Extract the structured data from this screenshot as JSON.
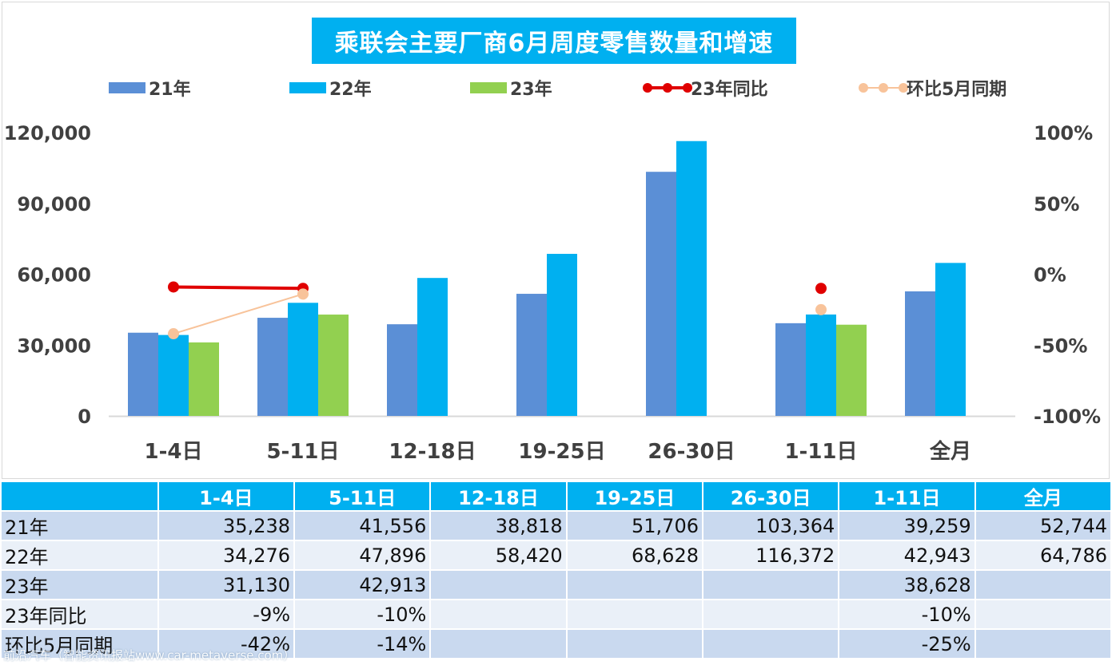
{
  "chart_data": {
    "type": "bar",
    "title": "乘联会主要厂商6月周度零售数量和增速",
    "categories": [
      "1-4日",
      "5-11日",
      "12-18日",
      "19-25日",
      "26-30日",
      "1-11日",
      "全月"
    ],
    "series": [
      {
        "name": "21年",
        "kind": "bar",
        "color": "#5b8fd6",
        "values": [
          35238,
          41556,
          38818,
          51706,
          103364,
          39259,
          52744
        ]
      },
      {
        "name": "22年",
        "kind": "bar",
        "color": "#00b0f0",
        "values": [
          34276,
          47896,
          58420,
          68628,
          116372,
          42943,
          64786
        ]
      },
      {
        "name": "23年",
        "kind": "bar",
        "color": "#92d050",
        "values": [
          31130,
          42913,
          null,
          null,
          null,
          38628,
          null
        ]
      },
      {
        "name": "23年同比",
        "kind": "line",
        "axis": "right",
        "color": "#e00000",
        "values": [
          -0.09,
          -0.1,
          null,
          null,
          null,
          -0.1,
          null
        ]
      },
      {
        "name": "环比5月同期",
        "kind": "line",
        "axis": "right",
        "color": "#f8c39a",
        "values": [
          -0.42,
          -0.14,
          null,
          null,
          null,
          -0.25,
          null
        ]
      }
    ],
    "ylim": [
      0,
      120000
    ],
    "yticks": [
      "0",
      "30,000",
      "60,000",
      "90,000",
      "120,000"
    ],
    "y2lim": [
      -1,
      1
    ],
    "y2ticks": [
      "-100%",
      "-50%",
      "0%",
      "50%",
      "100%"
    ],
    "legend_position": "top",
    "grid": false
  },
  "table": {
    "headers": [
      "1-4日",
      "5-11日",
      "12-18日",
      "19-25日",
      "26-30日",
      "1-11日",
      "全月"
    ],
    "rows": [
      {
        "label": "21年",
        "cells": [
          "35,238",
          "41,556",
          "38,818",
          "51,706",
          "103,364",
          "39,259",
          "52,744"
        ]
      },
      {
        "label": "22年",
        "cells": [
          "34,276",
          "47,896",
          "58,420",
          "68,628",
          "116,372",
          "42,943",
          "64,786"
        ]
      },
      {
        "label": "23年",
        "cells": [
          "31,130",
          "42,913",
          "",
          "",
          "",
          "38,628",
          ""
        ]
      },
      {
        "label": "23年同比",
        "cells": [
          "-9%",
          "-10%",
          "",
          "",
          "",
          "-10%",
          ""
        ]
      },
      {
        "label": "环比5月同期",
        "cells": [
          "-42%",
          "-14%",
          "",
          "",
          "",
          "-25%",
          ""
        ]
      }
    ]
  },
  "watermark": "前沿汽车（智能资讯报站www.car-metaverse.com）"
}
